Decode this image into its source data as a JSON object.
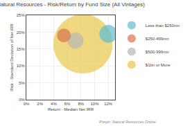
{
  "chart_data": {
    "type": "scatter",
    "title": "Natural Resources - Risk/Return by Fund Size (All Vintages)",
    "xlabel": "Return - Median Net IRR",
    "ylabel": "Risk - Standard Deviation of Net IRR",
    "annotations": [
      {
        "text": "Preqin: Natural Resources Online"
      }
    ],
    "marker": "circle",
    "series": [
      {
        "name": "Less than $250mn",
        "color": "#5bbcd6",
        "x": [
          0.12
        ],
        "y": [
          0.195
        ],
        "size": [
          200
        ]
      },
      {
        "name": "$250-499mn",
        "color": "#d9734e",
        "x": [
          0.055
        ],
        "y": [
          0.19
        ],
        "size": [
          120
        ]
      },
      {
        "name": "$500-999mn",
        "color": "#b8b8b8",
        "x": [
          0.072
        ],
        "y": [
          0.175
        ],
        "size": [
          160
        ]
      },
      {
        "name": "$1bn or More",
        "color": "#e8c84a",
        "x": [
          0.083
        ],
        "y": [
          0.165
        ],
        "size": [
          2200
        ]
      }
    ],
    "xlim": [
      0.0,
      0.13
    ],
    "ylim": [
      0.0,
      0.25
    ],
    "xticks": [
      {
        "value": 0.0,
        "label": "0%"
      },
      {
        "value": 0.02,
        "label": "2%"
      },
      {
        "value": 0.04,
        "label": "4%"
      },
      {
        "value": 0.06,
        "label": "6%"
      },
      {
        "value": 0.08,
        "label": "8%"
      },
      {
        "value": 0.1,
        "label": "10%"
      },
      {
        "value": 0.12,
        "label": "12%"
      }
    ],
    "yticks": [
      {
        "value": 0.0,
        "label": "0%"
      },
      {
        "value": 0.05,
        "label": "5%"
      },
      {
        "value": 0.1,
        "label": "10%"
      },
      {
        "value": 0.15,
        "label": "15%"
      },
      {
        "value": 0.2,
        "label": "20%"
      },
      {
        "value": 0.25,
        "label": "25%"
      }
    ],
    "grid": true,
    "legend": "right"
  }
}
